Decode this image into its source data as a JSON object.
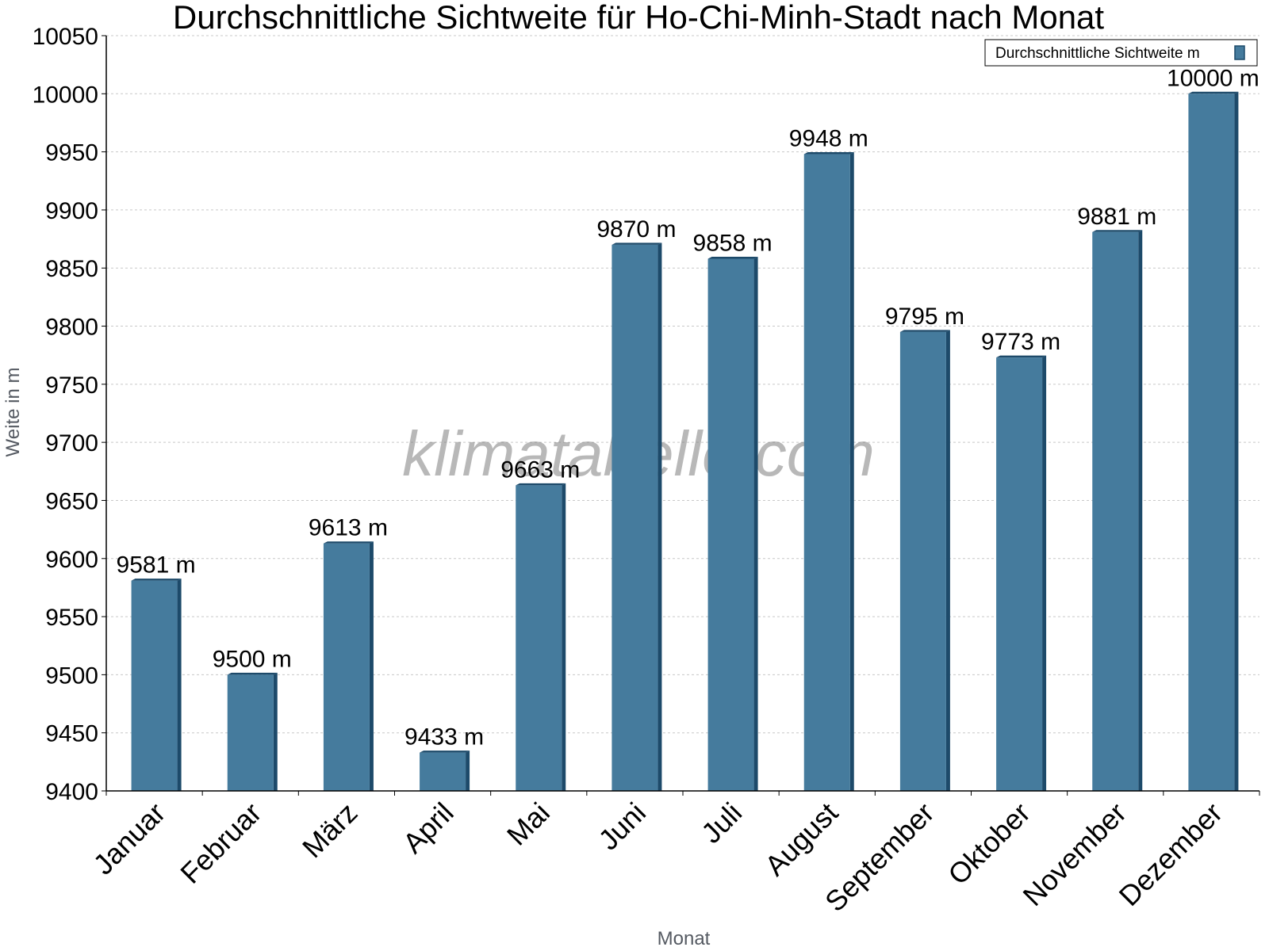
{
  "chart_data": {
    "type": "bar",
    "title": "Durchschnittliche Sichtweite für Ho-Chi-Minh-Stadt nach Monat",
    "xlabel": "Monat",
    "ylabel": "Weite in m",
    "categories": [
      "Januar",
      "Februar",
      "März",
      "April",
      "Mai",
      "Juni",
      "Juli",
      "August",
      "September",
      "Oktober",
      "November",
      "Dezember"
    ],
    "series": [
      {
        "name": "Durchschnittliche Sichtweite m",
        "values": [
          9581,
          9500,
          9613,
          9433,
          9663,
          9870,
          9858,
          9948,
          9795,
          9773,
          9881,
          10000
        ],
        "data_labels": [
          "9581 m",
          "9500 m",
          "9613 m",
          "9433 m",
          "9663 m",
          "9870 m",
          "9858 m",
          "9948 m",
          "9795 m",
          "9773 m",
          "9881 m",
          "10000 m"
        ],
        "color": "#457b9d",
        "edge_color": "#1d4a6a"
      }
    ],
    "ylim": [
      9400,
      10050
    ],
    "yticks": [
      "9400",
      "9450",
      "9500",
      "9550",
      "9600",
      "9650",
      "9700",
      "9750",
      "9800",
      "9850",
      "9900",
      "9950",
      "10000",
      "10050"
    ],
    "grid": true,
    "legend_position": "top-right",
    "watermark": "klimatabelle.com"
  }
}
